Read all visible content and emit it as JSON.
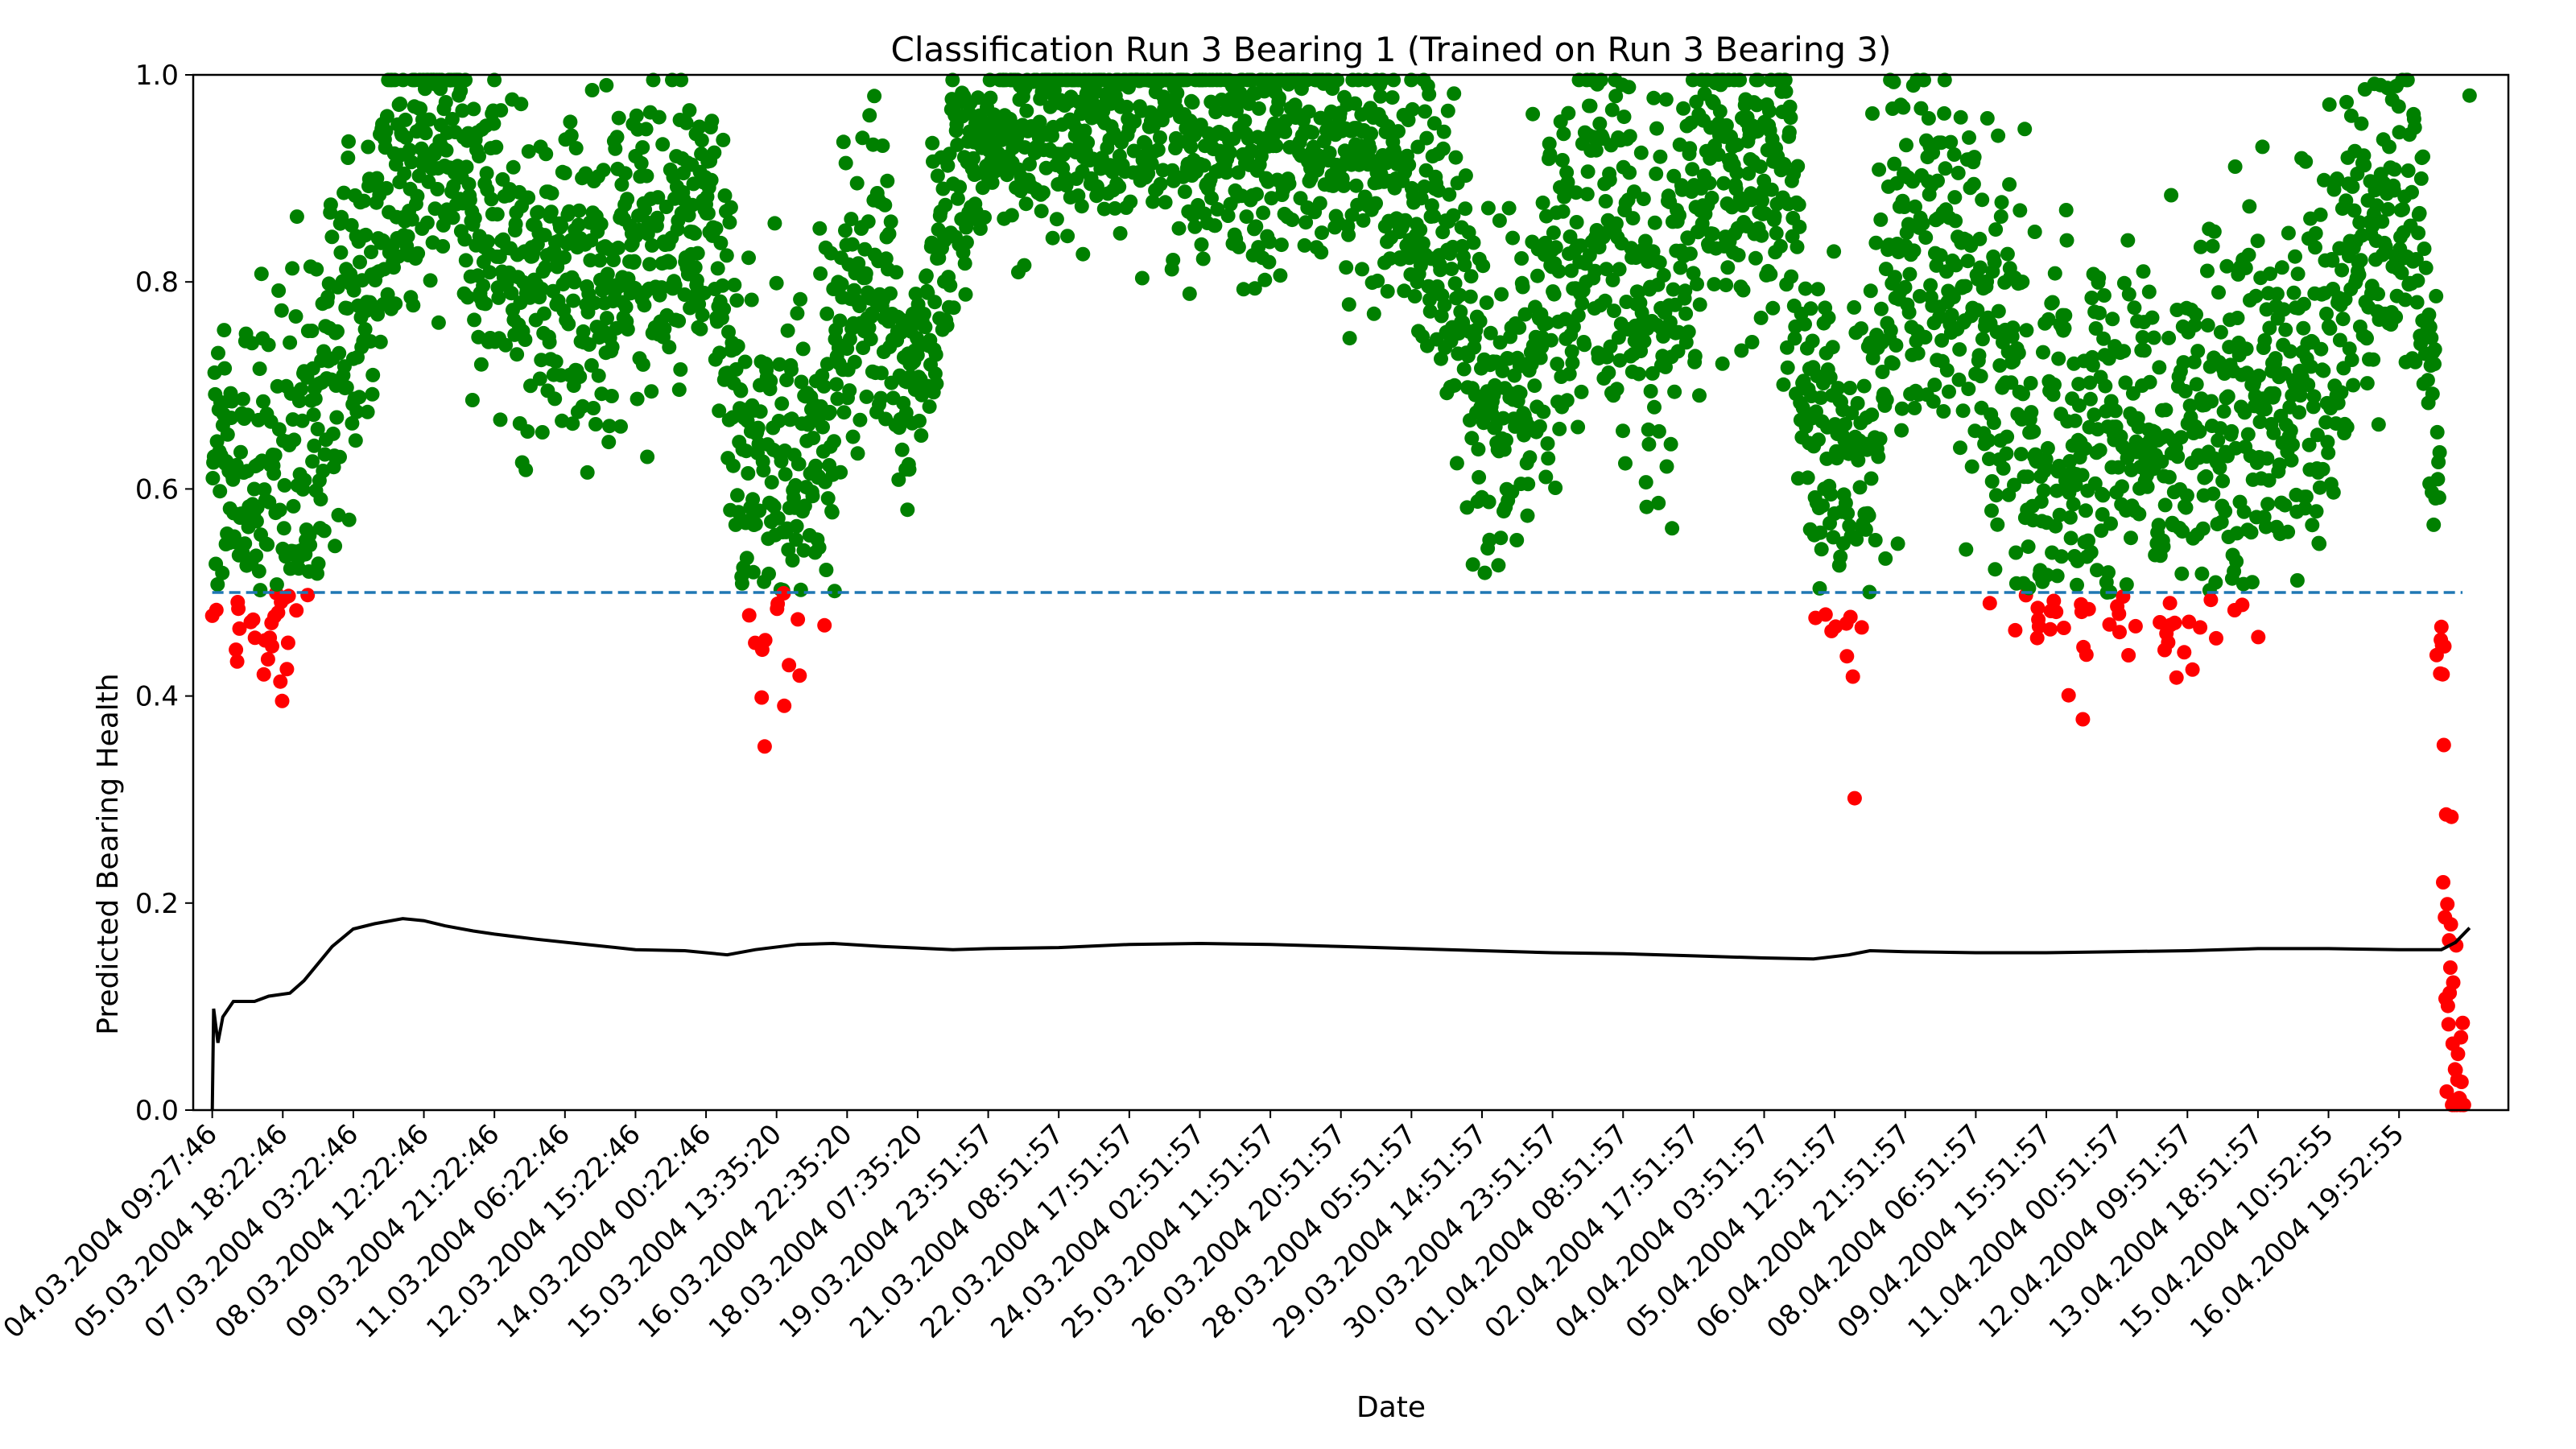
{
  "chart_data": {
    "type": "scatter",
    "title": "Classification Run 3 Bearing 1 (Trained on Run 3 Bearing 3)",
    "xlabel": "Date",
    "ylabel": "Predicted Bearing Health",
    "ylim": [
      0,
      1
    ],
    "xlim": [
      -0.27,
      32.55
    ],
    "yticks": [
      "0.0",
      "0.2",
      "0.4",
      "0.6",
      "0.8",
      "1.0"
    ],
    "xticks": [
      "04.03.2004 09:27:46",
      "05.03.2004 18:22:46",
      "07.03.2004 03:22:46",
      "08.03.2004 12:22:46",
      "09.03.2004 21:22:46",
      "11.03.2004 06:22:46",
      "12.03.2004 15:22:46",
      "14.03.2004 00:22:46",
      "15.03.2004 13:35:20",
      "16.03.2004 22:35:20",
      "18.03.2004 07:35:20",
      "19.03.2004 23:51:57",
      "21.03.2004 08:51:57",
      "22.03.2004 17:51:57",
      "24.03.2004 02:51:57",
      "25.03.2004 11:51:57",
      "26.03.2004 20:51:57",
      "28.03.2004 05:51:57",
      "29.03.2004 14:51:57",
      "30.03.2004 23:51:57",
      "01.04.2004 08:51:57",
      "02.04.2004 17:51:57",
      "04.04.2004 03:51:57",
      "05.04.2004 12:51:57",
      "06.04.2004 21:51:57",
      "08.04.2004 06:51:57",
      "09.04.2004 15:51:57",
      "11.04.2004 00:51:57",
      "12.04.2004 09:51:57",
      "13.04.2004 18:51:57",
      "15.04.2004 10:52:55",
      "16.04.2004 19:52:55"
    ],
    "threshold": 0.5,
    "colors": {
      "healthy": "#008000",
      "faulty": "#ff0000",
      "threshold": "#1f77b4",
      "trend": "#000000"
    },
    "health_profile": [
      [
        0.0,
        0.6
      ],
      [
        0.5,
        0.6
      ],
      [
        1.1,
        0.55
      ],
      [
        2.0,
        0.8
      ],
      [
        2.7,
        0.91
      ],
      [
        3.0,
        0.93
      ],
      [
        3.5,
        0.94
      ],
      [
        4.0,
        0.83
      ],
      [
        4.5,
        0.8
      ],
      [
        5.0,
        0.8
      ],
      [
        5.5,
        0.82
      ],
      [
        6.0,
        0.83
      ],
      [
        6.5,
        0.84
      ],
      [
        7.0,
        0.88
      ],
      [
        7.3,
        0.75
      ],
      [
        7.6,
        0.6
      ],
      [
        8.2,
        0.6
      ],
      [
        8.6,
        0.63
      ],
      [
        9.0,
        0.78
      ],
      [
        9.5,
        0.8
      ],
      [
        9.8,
        0.68
      ],
      [
        10.1,
        0.75
      ],
      [
        10.5,
        0.9
      ],
      [
        11.5,
        0.95
      ],
      [
        13.5,
        0.97
      ],
      [
        14.5,
        0.93
      ],
      [
        15.0,
        0.94
      ],
      [
        16.0,
        0.93
      ],
      [
        16.5,
        0.9
      ],
      [
        17.0,
        0.88
      ],
      [
        17.5,
        0.8
      ],
      [
        18.0,
        0.72
      ],
      [
        18.5,
        0.66
      ],
      [
        19.0,
        0.78
      ],
      [
        19.5,
        0.9
      ],
      [
        20.0,
        0.8
      ],
      [
        20.5,
        0.78
      ],
      [
        21.0,
        0.86
      ],
      [
        21.5,
        0.9
      ],
      [
        22.0,
        0.92
      ],
      [
        22.3,
        0.88
      ],
      [
        22.7,
        0.65
      ],
      [
        23.3,
        0.58
      ],
      [
        23.8,
        0.8
      ],
      [
        24.3,
        0.88
      ],
      [
        24.7,
        0.83
      ],
      [
        25.2,
        0.73
      ],
      [
        25.8,
        0.64
      ],
      [
        26.5,
        0.64
      ],
      [
        27.0,
        0.68
      ],
      [
        27.5,
        0.64
      ],
      [
        28.0,
        0.63
      ],
      [
        28.5,
        0.64
      ],
      [
        29.0,
        0.66
      ],
      [
        29.5,
        0.68
      ],
      [
        30.0,
        0.73
      ],
      [
        30.5,
        0.85
      ],
      [
        31.0,
        0.88
      ],
      [
        31.3,
        0.84
      ],
      [
        31.55,
        0.65
      ],
      [
        31.65,
        0.25
      ],
      [
        31.8,
        0.05
      ],
      [
        31.9,
        0.02
      ]
    ],
    "noise_profile": [
      [
        0.0,
        0.09
      ],
      [
        1.0,
        0.11
      ],
      [
        2.0,
        0.08
      ],
      [
        6.0,
        0.08
      ],
      [
        7.0,
        0.06
      ],
      [
        7.5,
        0.1
      ],
      [
        9.0,
        0.08
      ],
      [
        11.0,
        0.05
      ],
      [
        14.0,
        0.06
      ],
      [
        17.0,
        0.06
      ],
      [
        18.0,
        0.09
      ],
      [
        20.0,
        0.09
      ],
      [
        22.0,
        0.08
      ],
      [
        22.5,
        0.08
      ],
      [
        23.5,
        0.1
      ],
      [
        24.5,
        0.08
      ],
      [
        25.0,
        0.1
      ],
      [
        30.0,
        0.1
      ],
      [
        31.0,
        0.08
      ],
      [
        31.5,
        0.08
      ],
      [
        31.7,
        0.1
      ],
      [
        32.0,
        0.04
      ]
    ],
    "scatter_n": 3800,
    "last_point": [
      32.0,
      0.98
    ],
    "trend_line": [
      [
        0.0,
        0.0
      ],
      [
        0.02,
        0.098
      ],
      [
        0.08,
        0.065
      ],
      [
        0.15,
        0.09
      ],
      [
        0.3,
        0.105
      ],
      [
        0.6,
        0.105
      ],
      [
        0.8,
        0.11
      ],
      [
        1.1,
        0.113
      ],
      [
        1.3,
        0.125
      ],
      [
        1.7,
        0.158
      ],
      [
        2.0,
        0.175
      ],
      [
        2.3,
        0.18
      ],
      [
        2.7,
        0.185
      ],
      [
        3.0,
        0.183
      ],
      [
        3.3,
        0.178
      ],
      [
        3.7,
        0.173
      ],
      [
        4.0,
        0.17
      ],
      [
        4.6,
        0.165
      ],
      [
        5.3,
        0.16
      ],
      [
        6.0,
        0.155
      ],
      [
        6.7,
        0.154
      ],
      [
        7.3,
        0.15
      ],
      [
        7.7,
        0.155
      ],
      [
        8.3,
        0.16
      ],
      [
        8.8,
        0.161
      ],
      [
        9.5,
        0.158
      ],
      [
        10.5,
        0.155
      ],
      [
        11.0,
        0.156
      ],
      [
        12.0,
        0.157
      ],
      [
        13.0,
        0.16
      ],
      [
        14.0,
        0.161
      ],
      [
        15.0,
        0.16
      ],
      [
        16.0,
        0.158
      ],
      [
        17.0,
        0.156
      ],
      [
        18.0,
        0.154
      ],
      [
        19.0,
        0.152
      ],
      [
        20.0,
        0.151
      ],
      [
        21.0,
        0.149
      ],
      [
        22.0,
        0.147
      ],
      [
        22.7,
        0.146
      ],
      [
        23.2,
        0.15
      ],
      [
        23.5,
        0.154
      ],
      [
        24.0,
        0.153
      ],
      [
        25.0,
        0.152
      ],
      [
        26.0,
        0.152
      ],
      [
        27.0,
        0.153
      ],
      [
        28.0,
        0.154
      ],
      [
        29.0,
        0.156
      ],
      [
        30.0,
        0.156
      ],
      [
        31.0,
        0.155
      ],
      [
        31.6,
        0.155
      ],
      [
        31.8,
        0.162
      ],
      [
        32.0,
        0.176
      ]
    ]
  }
}
